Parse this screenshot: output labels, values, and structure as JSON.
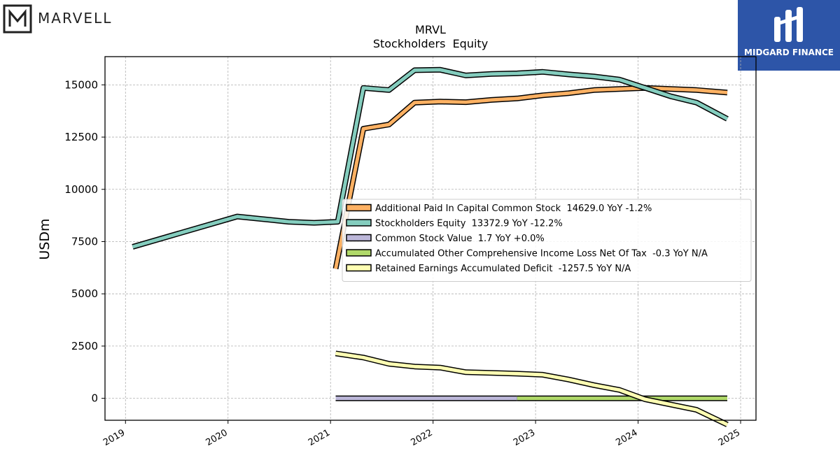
{
  "header": {
    "company_logo_text": "MARVELL",
    "watermark_text": "MIDGARD FINANCE"
  },
  "colors": {
    "additional_paid_in_capital": "#fdb163",
    "stockholders_equity": "#84cdbe",
    "common_stock_value": "#bcb7d9",
    "aoci": "#b0d96a",
    "retained_earnings": "#ffffb3",
    "watermark_bg": "#2d55a8"
  },
  "chart_data": {
    "type": "line",
    "title": "MRVL",
    "subtitle": "Stockholders  Equity",
    "ylabel": "USDm",
    "xlabel": "",
    "xlim": [
      2018.8,
      2025.15
    ],
    "ylim": [
      -1050,
      16350
    ],
    "x_ticks": [
      2019,
      2020,
      2021,
      2022,
      2023,
      2024,
      2025
    ],
    "x_tick_labels": [
      "2019",
      "2020",
      "2021",
      "2022",
      "2023",
      "2024",
      "2025"
    ],
    "y_ticks": [
      0,
      2500,
      5000,
      7500,
      10000,
      12500,
      15000
    ],
    "y_tick_labels": [
      "0",
      "2500",
      "5000",
      "7500",
      "10000",
      "12500",
      "15000"
    ],
    "grid": true,
    "legend_position": "center-right",
    "series": [
      {
        "name": "Additional Paid In Capital Common Stock",
        "legend_label": "Additional Paid In Capital Common Stock  14629.0 YoY -1.2%",
        "color": "#fdb163",
        "points": [
          [
            2021.05,
            6200
          ],
          [
            2021.32,
            12900
          ],
          [
            2021.57,
            13100
          ],
          [
            2021.82,
            14150
          ],
          [
            2022.07,
            14200
          ],
          [
            2022.32,
            14170
          ],
          [
            2022.57,
            14280
          ],
          [
            2022.82,
            14350
          ],
          [
            2023.07,
            14500
          ],
          [
            2023.32,
            14600
          ],
          [
            2023.57,
            14750
          ],
          [
            2023.82,
            14800
          ],
          [
            2024.07,
            14850
          ],
          [
            2024.32,
            14800
          ],
          [
            2024.57,
            14750
          ],
          [
            2024.87,
            14629
          ]
        ]
      },
      {
        "name": "Stockholders Equity",
        "legend_label": "Stockholders Equity  13372.9 YoY -12.2%",
        "color": "#84cdbe",
        "points": [
          [
            2019.07,
            7250
          ],
          [
            2020.09,
            8700
          ],
          [
            2020.59,
            8450
          ],
          [
            2020.84,
            8400
          ],
          [
            2021.07,
            8450
          ],
          [
            2021.32,
            14850
          ],
          [
            2021.57,
            14750
          ],
          [
            2021.82,
            15700
          ],
          [
            2022.07,
            15720
          ],
          [
            2022.32,
            15450
          ],
          [
            2022.57,
            15520
          ],
          [
            2022.82,
            15550
          ],
          [
            2023.07,
            15620
          ],
          [
            2023.32,
            15500
          ],
          [
            2023.57,
            15400
          ],
          [
            2023.82,
            15250
          ],
          [
            2024.07,
            14850
          ],
          [
            2024.32,
            14450
          ],
          [
            2024.57,
            14150
          ],
          [
            2024.87,
            13373
          ]
        ]
      },
      {
        "name": "Common Stock Value",
        "legend_label": "Common Stock Value  1.7 YoY +0.0%",
        "color": "#bcb7d9",
        "points": [
          [
            2021.05,
            0
          ],
          [
            2022.82,
            0
          ]
        ]
      },
      {
        "name": "Accumulated Other Comprehensive Income Loss Net Of Tax",
        "legend_label": "Accumulated Other Comprehensive Income Loss Net Of Tax  -0.3 YoY N/A",
        "color": "#b0d96a",
        "points": [
          [
            2022.82,
            0
          ],
          [
            2024.87,
            0
          ]
        ]
      },
      {
        "name": "Retained Earnings Accumulated Deficit",
        "legend_label": "Retained Earnings Accumulated Deficit  -1257.5 YoY N/A",
        "color": "#ffffb3",
        "points": [
          [
            2021.05,
            2150
          ],
          [
            2021.32,
            1950
          ],
          [
            2021.57,
            1650
          ],
          [
            2021.82,
            1520
          ],
          [
            2022.07,
            1470
          ],
          [
            2022.32,
            1250
          ],
          [
            2022.57,
            1220
          ],
          [
            2022.82,
            1180
          ],
          [
            2023.07,
            1130
          ],
          [
            2023.32,
            900
          ],
          [
            2023.57,
            630
          ],
          [
            2023.82,
            400
          ],
          [
            2024.07,
            -50
          ],
          [
            2024.32,
            -300
          ],
          [
            2024.57,
            -550
          ],
          [
            2024.87,
            -1258
          ]
        ]
      }
    ]
  }
}
